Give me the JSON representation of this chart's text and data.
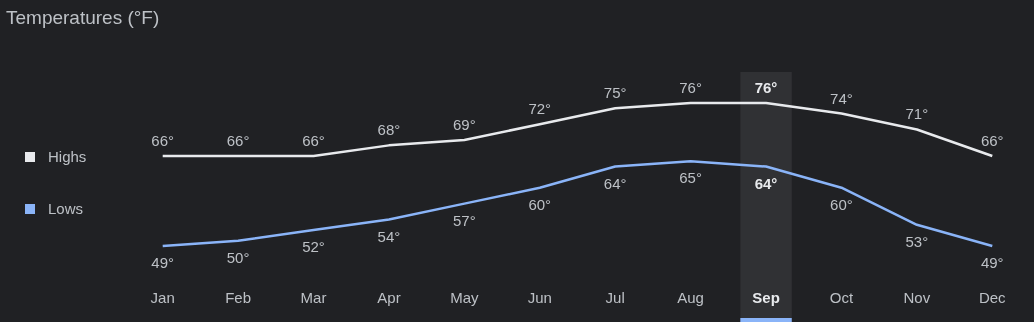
{
  "chart_data": {
    "type": "line",
    "title": "Temperatures (°F)",
    "categories": [
      "Jan",
      "Feb",
      "Mar",
      "Apr",
      "May",
      "Jun",
      "Jul",
      "Aug",
      "Sep",
      "Oct",
      "Nov",
      "Dec"
    ],
    "series": [
      {
        "name": "Highs",
        "color": "#e8eaed",
        "values": [
          66,
          66,
          66,
          68,
          69,
          72,
          75,
          76,
          76,
          74,
          71,
          66
        ],
        "value_labels": [
          "66°",
          "66°",
          "66°",
          "68°",
          "69°",
          "72°",
          "75°",
          "76°",
          "76°",
          "74°",
          "71°",
          "66°"
        ]
      },
      {
        "name": "Lows",
        "color": "#8ab4f8",
        "values": [
          49,
          50,
          52,
          54,
          57,
          60,
          64,
          65,
          64,
          60,
          53,
          49
        ],
        "value_labels": [
          "49°",
          "50°",
          "52°",
          "54°",
          "57°",
          "60°",
          "64°",
          "65°",
          "64°",
          "60°",
          "53°",
          "49°"
        ]
      }
    ],
    "bands": [
      {
        "axis": "x",
        "from": "Sep",
        "to": "Sep",
        "color": "#303134"
      }
    ],
    "legend": "left",
    "grid": false,
    "marker": "none",
    "line_style": "solid"
  }
}
